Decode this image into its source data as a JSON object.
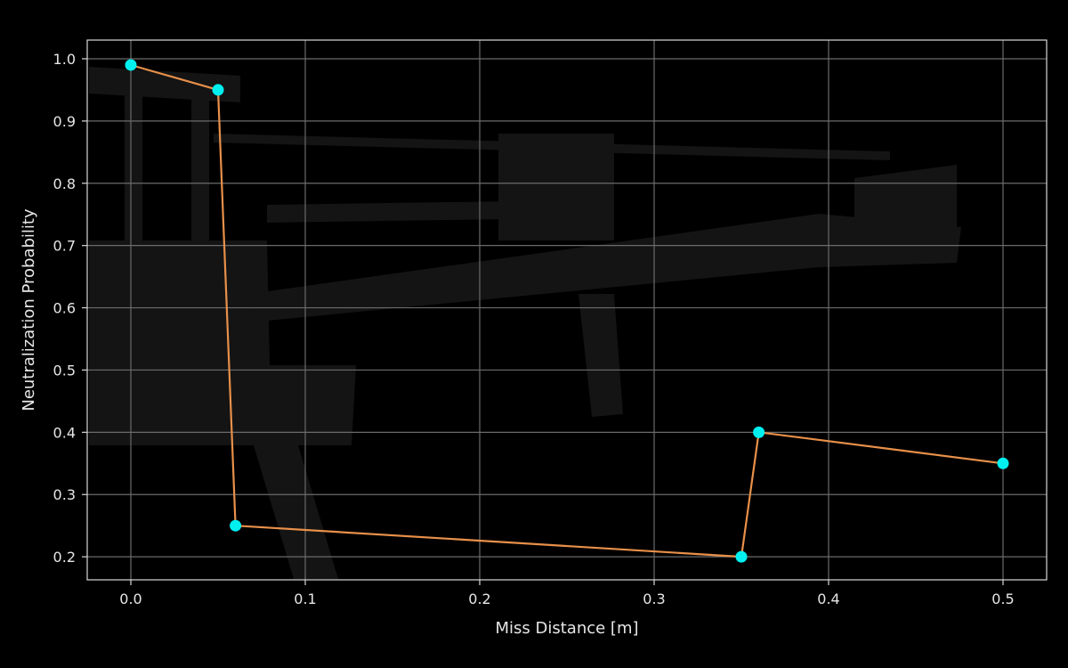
{
  "chart_data": {
    "type": "line",
    "title": "",
    "xlabel": "Miss Distance [m]",
    "ylabel": "Neutralization Probability",
    "xlim": [
      -0.025,
      0.525
    ],
    "ylim": [
      0.163,
      1.03
    ],
    "xticks": [
      "0.0",
      "0.1",
      "0.2",
      "0.3",
      "0.4",
      "0.5"
    ],
    "yticks": [
      "0.2",
      "0.3",
      "0.4",
      "0.5",
      "0.6",
      "0.7",
      "0.8",
      "0.9",
      "1.0"
    ],
    "grid": true,
    "background_image": "drone-silhouette",
    "colors": {
      "line": "#e8904a",
      "marker": "#00f0f0",
      "grid": "#6b6b6b",
      "frame": "#d9d9d9",
      "background": "#000000"
    },
    "series": [
      {
        "x": [
          0.0,
          0.05,
          0.06,
          0.35,
          0.36,
          0.5
        ],
        "y": [
          0.99,
          0.95,
          0.25,
          0.2,
          0.4,
          0.35
        ]
      }
    ]
  }
}
